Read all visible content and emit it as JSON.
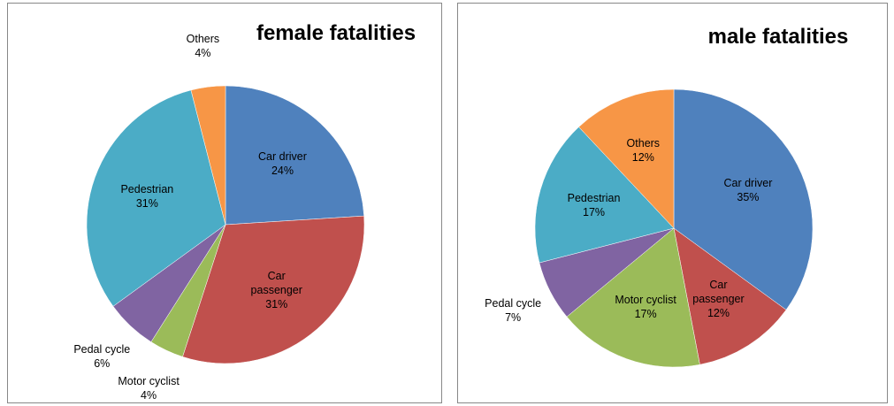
{
  "chart_data": [
    {
      "type": "pie",
      "title": "female fatalities",
      "categories": [
        "Car driver",
        "Car passenger",
        "Motor cyclist",
        "Pedal cycle",
        "Pedestrian",
        "Others"
      ],
      "values": [
        24,
        31,
        4,
        6,
        31,
        4
      ],
      "value_labels": [
        "24%",
        "31%",
        "4%",
        "6%",
        "31%",
        "4%"
      ],
      "colors": [
        "#4f81bd",
        "#c0504d",
        "#9bbb59",
        "#8064a2",
        "#4bacc6",
        "#f79646"
      ]
    },
    {
      "type": "pie",
      "title": "male fatalities",
      "categories": [
        "Car driver",
        "Car passenger",
        "Motor cyclist",
        "Pedal cycle",
        "Pedestrian",
        "Others"
      ],
      "values": [
        35,
        12,
        17,
        7,
        17,
        12
      ],
      "value_labels": [
        "35%",
        "12%",
        "17%",
        "7%",
        "17%",
        "12%"
      ],
      "colors": [
        "#4f81bd",
        "#c0504d",
        "#9bbb59",
        "#8064a2",
        "#4bacc6",
        "#f79646"
      ]
    }
  ]
}
